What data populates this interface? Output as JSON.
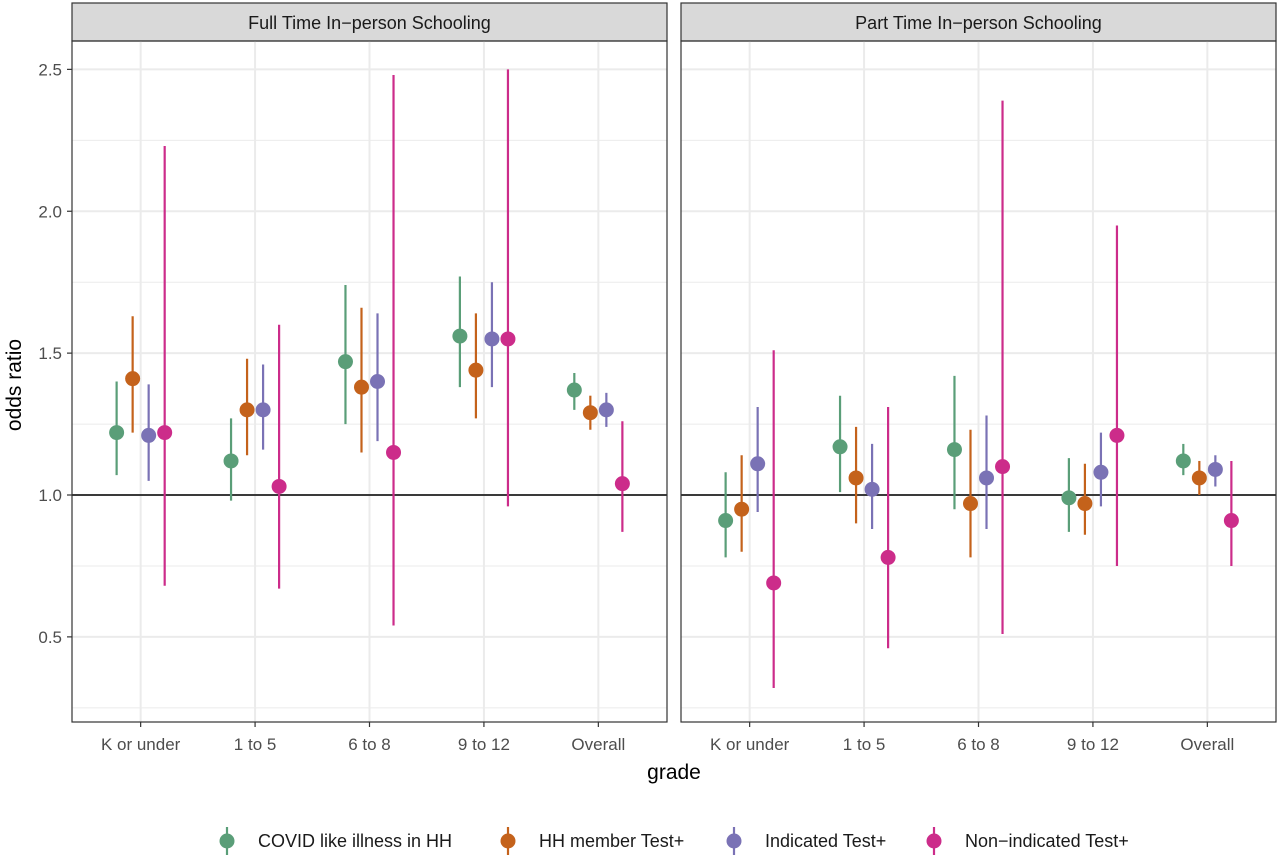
{
  "chart_data": {
    "type": "scatter",
    "ylabel": "odds ratio",
    "xlabel": "grade",
    "ylim": [
      0.2,
      2.6
    ],
    "yticks": [
      "0.5",
      "1.0",
      "1.5",
      "2.0",
      "2.5"
    ],
    "reference_line": 1.0,
    "grid": true,
    "legend_position": "bottom",
    "categories": [
      "K or under",
      "1 to 5",
      "6 to 8",
      "9 to 12",
      "Overall"
    ],
    "series": [
      {
        "name": "COVID like illness in HH",
        "color": "#5a9e78"
      },
      {
        "name": "HH member Test+",
        "color": "#c4621b"
      },
      {
        "name": "Indicated Test+",
        "color": "#7a72b5"
      },
      {
        "name": "Non−indicated Test+",
        "color": "#cc2c8a"
      }
    ],
    "panels": [
      {
        "title": "Full Time In−person Schooling",
        "data": [
          [
            {
              "est": 1.22,
              "lo": 1.07,
              "hi": 1.4
            },
            {
              "est": 1.41,
              "lo": 1.22,
              "hi": 1.63
            },
            {
              "est": 1.21,
              "lo": 1.05,
              "hi": 1.39
            },
            {
              "est": 1.22,
              "lo": 0.68,
              "hi": 2.23
            }
          ],
          [
            {
              "est": 1.12,
              "lo": 0.98,
              "hi": 1.27
            },
            {
              "est": 1.3,
              "lo": 1.14,
              "hi": 1.48
            },
            {
              "est": 1.3,
              "lo": 1.16,
              "hi": 1.46
            },
            {
              "est": 1.03,
              "lo": 0.67,
              "hi": 1.6
            }
          ],
          [
            {
              "est": 1.47,
              "lo": 1.25,
              "hi": 1.74
            },
            {
              "est": 1.38,
              "lo": 1.15,
              "hi": 1.66
            },
            {
              "est": 1.4,
              "lo": 1.19,
              "hi": 1.64
            },
            {
              "est": 1.15,
              "lo": 0.54,
              "hi": 2.48
            }
          ],
          [
            {
              "est": 1.56,
              "lo": 1.38,
              "hi": 1.77
            },
            {
              "est": 1.44,
              "lo": 1.27,
              "hi": 1.64
            },
            {
              "est": 1.55,
              "lo": 1.38,
              "hi": 1.75
            },
            {
              "est": 1.55,
              "lo": 0.96,
              "hi": 2.5
            }
          ],
          [
            {
              "est": 1.37,
              "lo": 1.3,
              "hi": 1.43
            },
            {
              "est": 1.29,
              "lo": 1.23,
              "hi": 1.35
            },
            {
              "est": 1.3,
              "lo": 1.24,
              "hi": 1.36
            },
            {
              "est": 1.04,
              "lo": 0.87,
              "hi": 1.26
            }
          ]
        ]
      },
      {
        "title": "Part Time In−person Schooling",
        "data": [
          [
            {
              "est": 0.91,
              "lo": 0.78,
              "hi": 1.08
            },
            {
              "est": 0.95,
              "lo": 0.8,
              "hi": 1.14
            },
            {
              "est": 1.11,
              "lo": 0.94,
              "hi": 1.31
            },
            {
              "est": 0.69,
              "lo": 0.32,
              "hi": 1.51
            }
          ],
          [
            {
              "est": 1.17,
              "lo": 1.01,
              "hi": 1.35
            },
            {
              "est": 1.06,
              "lo": 0.9,
              "hi": 1.24
            },
            {
              "est": 1.02,
              "lo": 0.88,
              "hi": 1.18
            },
            {
              "est": 0.78,
              "lo": 0.46,
              "hi": 1.31
            }
          ],
          [
            {
              "est": 1.16,
              "lo": 0.95,
              "hi": 1.42
            },
            {
              "est": 0.97,
              "lo": 0.78,
              "hi": 1.23
            },
            {
              "est": 1.06,
              "lo": 0.88,
              "hi": 1.28
            },
            {
              "est": 1.1,
              "lo": 0.51,
              "hi": 2.39
            }
          ],
          [
            {
              "est": 0.99,
              "lo": 0.87,
              "hi": 1.13
            },
            {
              "est": 0.97,
              "lo": 0.86,
              "hi": 1.11
            },
            {
              "est": 1.08,
              "lo": 0.96,
              "hi": 1.22
            },
            {
              "est": 1.21,
              "lo": 0.75,
              "hi": 1.95
            }
          ],
          [
            {
              "est": 1.12,
              "lo": 1.07,
              "hi": 1.18
            },
            {
              "est": 1.06,
              "lo": 1.0,
              "hi": 1.12
            },
            {
              "est": 1.09,
              "lo": 1.03,
              "hi": 1.14
            },
            {
              "est": 0.91,
              "lo": 0.75,
              "hi": 1.12
            }
          ]
        ]
      }
    ]
  }
}
